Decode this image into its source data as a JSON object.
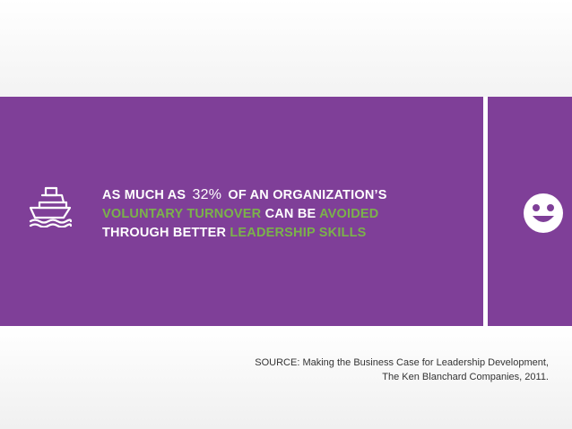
{
  "slide": {
    "headline": {
      "seg1": "AS MUCH AS",
      "percent": "32%",
      "seg2": "OF AN ORGANIZATION’S",
      "seg3": "VOLUNTARY TURNOVER",
      "seg4": " CAN BE ",
      "seg5": "AVOIDED",
      "seg6": "THROUGH BETTER ",
      "seg7": "LEADERSHIP SKILLS"
    },
    "source": {
      "line1": "SOURCE: Making the Business Case for Leadership Development,",
      "line2": "The Ken Blanchard Companies, 2011."
    },
    "icons": {
      "left": "ship-icon",
      "right": "smiley-icon"
    },
    "colors": {
      "purple": "#7f3f98",
      "green": "#7bb24a",
      "white": "#ffffff",
      "source_text": "#333333"
    }
  }
}
